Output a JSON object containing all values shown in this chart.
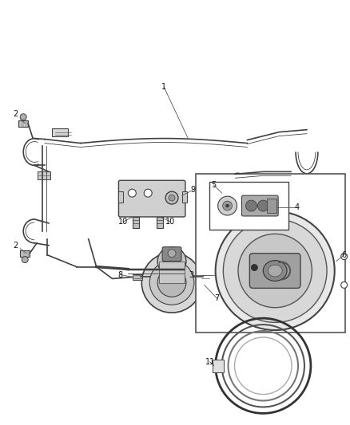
{
  "bg_color": "#ffffff",
  "fig_width": 4.38,
  "fig_height": 5.33,
  "lc": "#404040",
  "lc_dark": "#222222",
  "lc_mid": "#888888",
  "lc_light": "#bbbbbb"
}
